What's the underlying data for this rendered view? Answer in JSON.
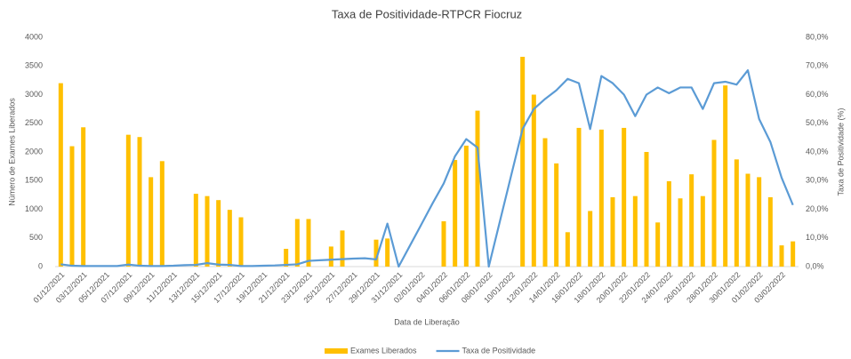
{
  "chart_data": {
    "type": "bar-line",
    "title": "Taxa de Positividade-RTPCR Fiocruz",
    "x_label": "Data de Liberação",
    "y_label": "Número de Exames Liberados",
    "y2_label": "Taxa de Positividade (%)",
    "categories": [
      "01/12/2021",
      null,
      "03/12/2021",
      null,
      "05/12/2021",
      null,
      "07/12/2021",
      null,
      "09/12/2021",
      null,
      "11/12/2021",
      null,
      "13/12/2021",
      null,
      "15/12/2021",
      null,
      "17/12/2021",
      null,
      "19/12/2021",
      null,
      "21/12/2021",
      null,
      "23/12/2021",
      null,
      "25/12/2021",
      null,
      "27/12/2021",
      null,
      "29/12/2021",
      null,
      "31/12/2021",
      null,
      "02/01/2022",
      null,
      "04/01/2022",
      null,
      "06/01/2022",
      null,
      "08/01/2022",
      null,
      "10/01/2022",
      null,
      "12/01/2022",
      null,
      "14/01/2022",
      null,
      "16/01/2022",
      null,
      "18/01/2022",
      null,
      "20/01/2022",
      null,
      "22/01/2022",
      null,
      "24/01/2022",
      null,
      "26/01/2022",
      null,
      "28/01/2022",
      null,
      "30/01/2022",
      null,
      "01/02/2022",
      null,
      "03/02/2022",
      null
    ],
    "series": [
      {
        "name": "Exames Liberados",
        "type": "bar",
        "color": "#ffc000",
        "values": [
          3200,
          2100,
          2430,
          0,
          0,
          0,
          2300,
          2260,
          1560,
          1840,
          0,
          0,
          1270,
          1230,
          1160,
          990,
          860,
          0,
          0,
          0,
          310,
          830,
          830,
          0,
          350,
          630,
          0,
          0,
          470,
          490,
          0,
          0,
          0,
          0,
          790,
          1860,
          2110,
          2720,
          0,
          0,
          0,
          3660,
          3000,
          2240,
          1800,
          600,
          2420,
          970,
          2390,
          1210,
          2420,
          1230,
          2000,
          770,
          1490,
          1190,
          1610,
          1230,
          2210,
          3160,
          1870,
          1620,
          1560,
          1210,
          370,
          440
        ]
      },
      {
        "name": "Taxa de Positividade",
        "type": "line",
        "axis": "y2",
        "color": "#5b9bd5",
        "values": [
          0.8,
          0.3,
          0.2,
          0.2,
          0.2,
          0.2,
          0.7,
          0.3,
          0.2,
          0.2,
          0.3,
          0.5,
          0.6,
          1.2,
          0.7,
          0.6,
          0.2,
          0.2,
          0.3,
          0.4,
          0.6,
          0.8,
          2.0,
          2.2,
          2.4,
          2.6,
          2.8,
          2.9,
          2.5,
          15,
          0,
          7.3,
          14.6,
          22,
          29,
          38.5,
          44.5,
          41.5,
          0,
          16,
          32,
          48,
          55,
          58.5,
          61.5,
          65.5,
          64,
          48,
          66.5,
          64,
          60,
          52.5,
          60,
          62.5,
          60.5,
          62.5,
          62.5,
          55,
          64,
          64.5,
          63.5,
          68.5,
          51.5,
          43.5,
          31,
          21.5
        ]
      }
    ],
    "ylim": [
      0,
      4000
    ],
    "yticks": [
      0,
      500,
      1000,
      1500,
      2000,
      2500,
      3000,
      3500,
      4000
    ],
    "y2lim": [
      0,
      80
    ],
    "y2ticks": [
      {
        "value": 0,
        "label": "0,0%"
      },
      {
        "value": 10,
        "label": "10,0%"
      },
      {
        "value": 20,
        "label": "20,0%"
      },
      {
        "value": 30,
        "label": "30,0%"
      },
      {
        "value": 40,
        "label": "40,0%"
      },
      {
        "value": 50,
        "label": "50,0%"
      },
      {
        "value": 60,
        "label": "60,0%"
      },
      {
        "value": 70,
        "label": "70,0%"
      },
      {
        "value": 80,
        "label": "80,0%"
      }
    ],
    "grid": false,
    "legend": "bottom"
  }
}
